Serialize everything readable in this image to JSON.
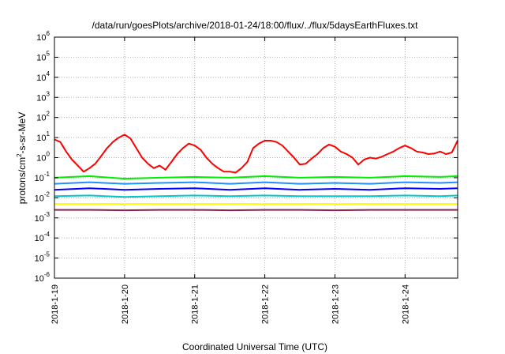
{
  "chart_data": {
    "type": "line",
    "title": "/data/run/goesPlots/archive/2018-01-24/18:00/flux/../flux/5daysEarthFluxes.txt",
    "xlabel": "Coordinated Universal Time (UTC)",
    "ylabel": {
      "base": "protons/cm",
      "sup": "2",
      "rest": "-s-sr-MeV"
    },
    "yscale": "log",
    "ylim_exponents": [
      -6,
      6
    ],
    "yticks": [
      {
        "base": "10",
        "exp": "6"
      },
      {
        "base": "10",
        "exp": "5"
      },
      {
        "base": "10",
        "exp": "4"
      },
      {
        "base": "10",
        "exp": "3"
      },
      {
        "base": "10",
        "exp": "2"
      },
      {
        "base": "10",
        "exp": "1"
      },
      {
        "base": "10",
        "exp": "0"
      },
      {
        "base": "10",
        "exp": "-1"
      },
      {
        "base": "10",
        "exp": "-2"
      },
      {
        "base": "10",
        "exp": "-3"
      },
      {
        "base": "10",
        "exp": "-4"
      },
      {
        "base": "10",
        "exp": "-5"
      },
      {
        "base": "10",
        "exp": "-6"
      }
    ],
    "xlim": [
      "2018-01-19T00:00",
      "2018-01-24T18:00"
    ],
    "xticks": [
      "2018-1-19",
      "2018-1-20",
      "2018-1-21",
      "2018-1-22",
      "2018-1-23",
      "2018-1-24"
    ],
    "grid": true,
    "series": [
      {
        "color": "#ff0000",
        "x": [
          "2018-01-19T00:00",
          "2018-01-19T02:00",
          "2018-01-19T04:00",
          "2018-01-19T06:00",
          "2018-01-19T08:00",
          "2018-01-19T10:00",
          "2018-01-19T12:00",
          "2018-01-19T14:00",
          "2018-01-19T16:00",
          "2018-01-19T18:00",
          "2018-01-19T20:00",
          "2018-01-19T22:00",
          "2018-01-20T00:00",
          "2018-01-20T02:00",
          "2018-01-20T04:00",
          "2018-01-20T06:00",
          "2018-01-20T08:00",
          "2018-01-20T10:00",
          "2018-01-20T12:00",
          "2018-01-20T14:00",
          "2018-01-20T16:00",
          "2018-01-20T18:00",
          "2018-01-20T20:00",
          "2018-01-20T22:00",
          "2018-01-21T00:00",
          "2018-01-21T02:00",
          "2018-01-21T04:00",
          "2018-01-21T06:00",
          "2018-01-21T08:00",
          "2018-01-21T10:00",
          "2018-01-21T12:00",
          "2018-01-21T14:00",
          "2018-01-21T16:00",
          "2018-01-21T18:00",
          "2018-01-21T20:00",
          "2018-01-21T22:00",
          "2018-01-22T00:00",
          "2018-01-22T02:00",
          "2018-01-22T04:00",
          "2018-01-22T06:00",
          "2018-01-22T08:00",
          "2018-01-22T10:00",
          "2018-01-22T12:00",
          "2018-01-22T14:00",
          "2018-01-22T16:00",
          "2018-01-22T18:00",
          "2018-01-22T20:00",
          "2018-01-22T22:00",
          "2018-01-23T00:00",
          "2018-01-23T02:00",
          "2018-01-23T04:00",
          "2018-01-23T06:00",
          "2018-01-23T08:00",
          "2018-01-23T10:00",
          "2018-01-23T12:00",
          "2018-01-23T14:00",
          "2018-01-23T16:00",
          "2018-01-23T18:00",
          "2018-01-23T20:00",
          "2018-01-23T22:00",
          "2018-01-24T00:00",
          "2018-01-24T02:00",
          "2018-01-24T04:00",
          "2018-01-24T06:00",
          "2018-01-24T08:00",
          "2018-01-24T10:00",
          "2018-01-24T12:00",
          "2018-01-24T14:00",
          "2018-01-24T16:00",
          "2018-01-24T18:00"
        ],
        "y": [
          8,
          6,
          2,
          0.8,
          0.4,
          0.2,
          0.3,
          0.5,
          1.2,
          3,
          6,
          10,
          14,
          9,
          3,
          1,
          0.5,
          0.3,
          0.4,
          0.25,
          0.6,
          1.5,
          3,
          5,
          4,
          2.5,
          1,
          0.5,
          0.3,
          0.2,
          0.2,
          0.18,
          0.3,
          0.6,
          3,
          5,
          7,
          7,
          6,
          4,
          2,
          1,
          0.45,
          0.5,
          0.9,
          1.5,
          3,
          4.5,
          3.5,
          2,
          1.5,
          1,
          0.45,
          0.8,
          1,
          0.9,
          1.1,
          1.5,
          2,
          3,
          4,
          3,
          2,
          1.8,
          1.5,
          1.6,
          2,
          1.5,
          1.8,
          7
        ]
      },
      {
        "color": "#00ee00",
        "x": [
          "2018-01-19T00:00",
          "2018-01-19T12:00",
          "2018-01-20T00:00",
          "2018-01-20T12:00",
          "2018-01-21T00:00",
          "2018-01-21T12:00",
          "2018-01-22T00:00",
          "2018-01-22T12:00",
          "2018-01-23T00:00",
          "2018-01-23T12:00",
          "2018-01-24T00:00",
          "2018-01-24T12:00",
          "2018-01-24T18:00"
        ],
        "y": [
          0.1,
          0.12,
          0.09,
          0.1,
          0.11,
          0.1,
          0.12,
          0.1,
          0.11,
          0.1,
          0.12,
          0.11,
          0.12
        ]
      },
      {
        "color": "#1e90ff",
        "x": [
          "2018-01-19T00:00",
          "2018-01-19T12:00",
          "2018-01-20T00:00",
          "2018-01-20T12:00",
          "2018-01-21T00:00",
          "2018-01-21T12:00",
          "2018-01-22T00:00",
          "2018-01-22T12:00",
          "2018-01-23T00:00",
          "2018-01-23T12:00",
          "2018-01-24T00:00",
          "2018-01-24T12:00",
          "2018-01-24T18:00"
        ],
        "y": [
          0.05,
          0.06,
          0.05,
          0.055,
          0.06,
          0.05,
          0.06,
          0.05,
          0.055,
          0.05,
          0.06,
          0.055,
          0.06
        ]
      },
      {
        "color": "#0000ff",
        "x": [
          "2018-01-19T00:00",
          "2018-01-19T12:00",
          "2018-01-20T00:00",
          "2018-01-20T12:00",
          "2018-01-21T00:00",
          "2018-01-21T12:00",
          "2018-01-22T00:00",
          "2018-01-22T12:00",
          "2018-01-23T00:00",
          "2018-01-23T12:00",
          "2018-01-24T00:00",
          "2018-01-24T12:00",
          "2018-01-24T18:00"
        ],
        "y": [
          0.025,
          0.03,
          0.025,
          0.028,
          0.03,
          0.025,
          0.03,
          0.025,
          0.028,
          0.025,
          0.03,
          0.028,
          0.03
        ]
      },
      {
        "color": "#00c8c8",
        "x": [
          "2018-01-19T00:00",
          "2018-01-19T12:00",
          "2018-01-20T00:00",
          "2018-01-20T12:00",
          "2018-01-21T00:00",
          "2018-01-21T12:00",
          "2018-01-22T00:00",
          "2018-01-22T12:00",
          "2018-01-23T00:00",
          "2018-01-23T12:00",
          "2018-01-24T00:00",
          "2018-01-24T12:00",
          "2018-01-24T18:00"
        ],
        "y": [
          0.012,
          0.013,
          0.011,
          0.012,
          0.013,
          0.012,
          0.013,
          0.012,
          0.012,
          0.012,
          0.013,
          0.012,
          0.013
        ]
      },
      {
        "color": "#ffff00",
        "x": [
          "2018-01-19T00:00",
          "2018-01-19T12:00",
          "2018-01-20T00:00",
          "2018-01-20T12:00",
          "2018-01-21T00:00",
          "2018-01-21T12:00",
          "2018-01-22T00:00",
          "2018-01-22T12:00",
          "2018-01-23T00:00",
          "2018-01-23T12:00",
          "2018-01-24T00:00",
          "2018-01-24T12:00",
          "2018-01-24T18:00"
        ],
        "y": [
          0.005,
          0.005,
          0.005,
          0.005,
          0.005,
          0.005,
          0.005,
          0.005,
          0.005,
          0.005,
          0.005,
          0.005,
          0.005
        ]
      },
      {
        "color": "#8b2252",
        "x": [
          "2018-01-19T00:00",
          "2018-01-19T12:00",
          "2018-01-20T00:00",
          "2018-01-20T12:00",
          "2018-01-21T00:00",
          "2018-01-21T12:00",
          "2018-01-22T00:00",
          "2018-01-22T12:00",
          "2018-01-23T00:00",
          "2018-01-23T12:00",
          "2018-01-24T00:00",
          "2018-01-24T12:00",
          "2018-01-24T18:00"
        ],
        "y": [
          0.0025,
          0.0025,
          0.0024,
          0.0025,
          0.0025,
          0.0024,
          0.0025,
          0.0025,
          0.0024,
          0.0025,
          0.0025,
          0.0025,
          0.0025
        ]
      }
    ]
  }
}
